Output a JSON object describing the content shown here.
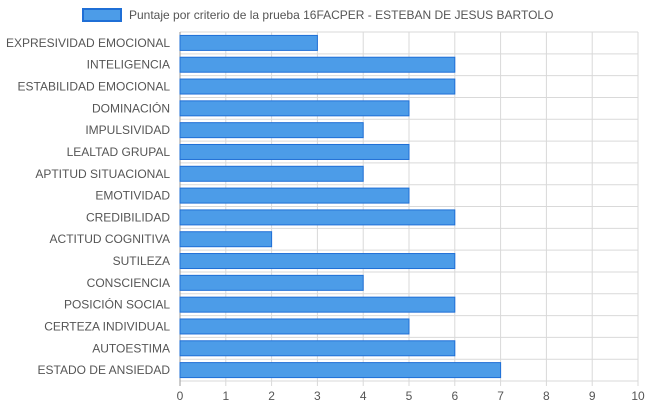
{
  "chart_data": {
    "type": "bar",
    "orientation": "horizontal",
    "categories": [
      "EXPRESIVIDAD EMOCIONAL",
      "INTELIGENCIA",
      "ESTABILIDAD EMOCIONAL",
      "DOMINACIÓN",
      "IMPULSIVIDAD",
      "LEALTAD GRUPAL",
      "APTITUD SITUACIONAL",
      "EMOTIVIDAD",
      "CREDIBILIDAD",
      "ACTITUD COGNITIVA",
      "SUTILEZA",
      "CONSCIENCIA",
      "POSICIÓN SOCIAL",
      "CERTEZA INDIVIDUAL",
      "AUTOESTIMA",
      "ESTADO DE ANSIEDAD"
    ],
    "series": [
      {
        "name": "Puntaje por criterio de la prueba 16FACPER - ESTEBAN DE JESUS BARTOLO",
        "values": [
          3,
          6,
          6,
          5,
          4,
          5,
          4,
          5,
          6,
          2,
          6,
          4,
          6,
          5,
          6,
          7
        ]
      }
    ],
    "xlim": [
      0,
      10
    ],
    "xticks": [
      "0",
      "1",
      "2",
      "3",
      "4",
      "5",
      "6",
      "7",
      "8",
      "9",
      "10"
    ],
    "grid": true,
    "legend_position": "top",
    "colors": {
      "bar_fill": "#4c9ce8",
      "bar_border": "#1f6fd6",
      "grid": "#d9d9d9",
      "text": "#555555"
    }
  }
}
